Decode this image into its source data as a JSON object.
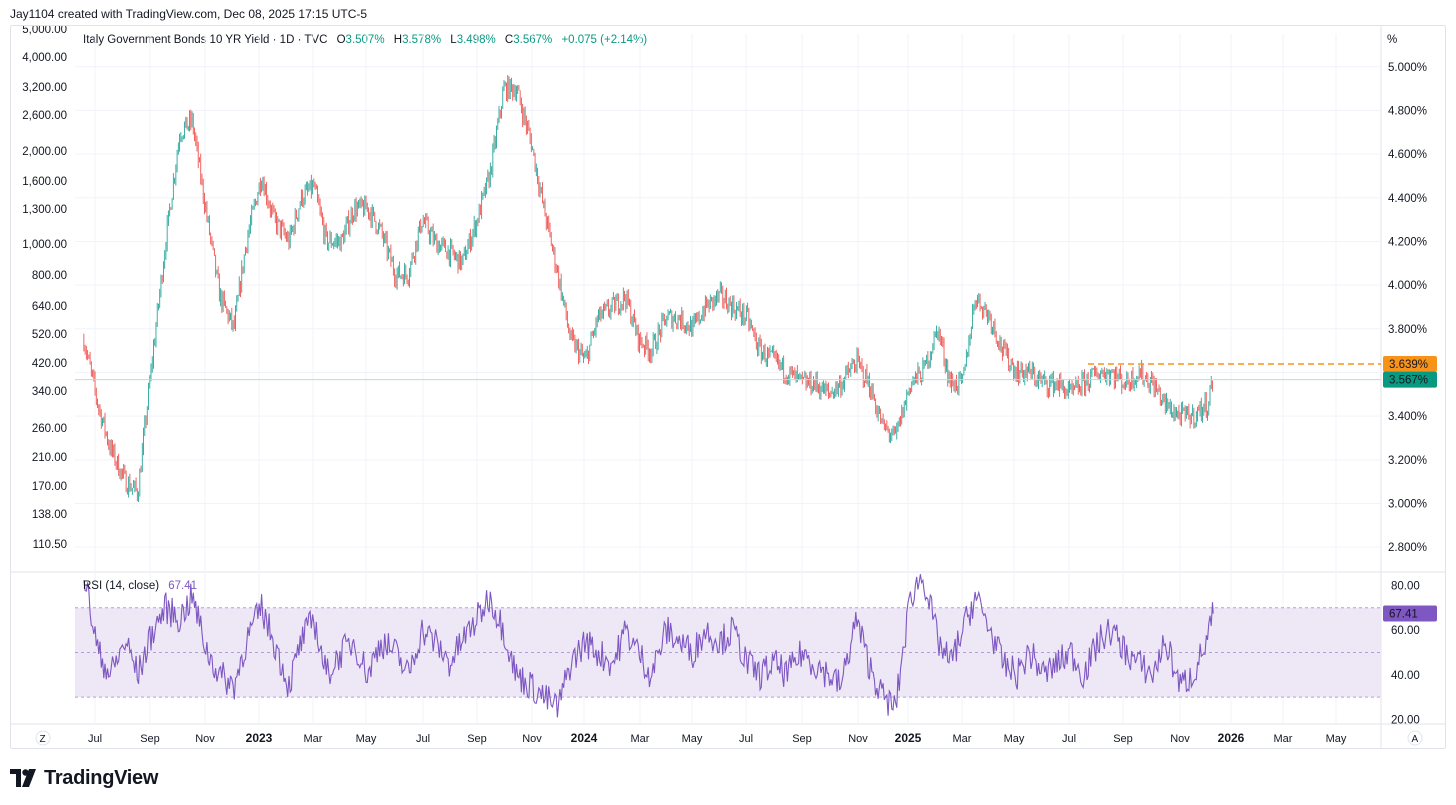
{
  "header": {
    "attribution": "Jay1104 created with TradingView.com, Dec 08, 2025 17:15 UTC-5"
  },
  "legend": {
    "symbol": "Italy Government Bonds 10 YR Yield · 1D · TVC",
    "o_label": "O",
    "o_value": "3.507%",
    "h_label": "H",
    "h_value": "3.578%",
    "l_label": "L",
    "l_value": "3.498%",
    "c_label": "C",
    "c_value": "3.567%",
    "change": "+0.075 (+2.14%)"
  },
  "rsi_legend": {
    "label": "RSI (14, close)",
    "value": "67.41"
  },
  "scale_buttons": {
    "percent": "%",
    "auto": "A",
    "zoom": "Z"
  },
  "price_tags": {
    "level": "3.639%",
    "last": "3.567%",
    "rsi": "67.41"
  },
  "colors": {
    "up": "#26a69a",
    "down": "#ef5350",
    "rsi_line": "#7e57c2",
    "rsi_band": "#ede7f6",
    "level_line": "#f7931a",
    "last_tag": "#089981",
    "text": "#131722",
    "grid": "#f0f3fa"
  },
  "brand": {
    "name": "TradingView",
    "logo_icon": "tradingview-logo-icon"
  },
  "chart_data": [
    {
      "type": "line",
      "subtype": "candlestick",
      "title": "Italy Government Bonds 10 YR Yield · 1D · TVC",
      "ohlc_last": {
        "open": 3.507,
        "high": 3.578,
        "low": 3.498,
        "close": 3.567,
        "change": 0.075,
        "change_pct": 2.14
      },
      "x": [
        "2022-06-15",
        "2022-07-01",
        "2022-07-15",
        "2022-08-01",
        "2022-08-15",
        "2022-09-01",
        "2022-09-15",
        "2022-10-01",
        "2022-10-15",
        "2022-11-01",
        "2022-11-15",
        "2022-12-01",
        "2022-12-15",
        "2023-01-01",
        "2023-01-15",
        "2023-02-01",
        "2023-02-15",
        "2023-03-01",
        "2023-03-15",
        "2023-04-01",
        "2023-04-15",
        "2023-05-01",
        "2023-05-15",
        "2023-06-01",
        "2023-06-15",
        "2023-07-01",
        "2023-07-15",
        "2023-08-01",
        "2023-08-15",
        "2023-09-01",
        "2023-09-15",
        "2023-10-01",
        "2023-10-15",
        "2023-11-01",
        "2023-11-15",
        "2023-12-01",
        "2023-12-15",
        "2024-01-01",
        "2024-01-15",
        "2024-02-01",
        "2024-02-15",
        "2024-03-01",
        "2024-03-15",
        "2024-04-01",
        "2024-04-15",
        "2024-05-01",
        "2024-05-15",
        "2024-06-01",
        "2024-06-15",
        "2024-07-01",
        "2024-07-15",
        "2024-08-01",
        "2024-08-15",
        "2024-09-01",
        "2024-09-15",
        "2024-10-01",
        "2024-10-15",
        "2024-11-01",
        "2024-11-15",
        "2024-12-01",
        "2024-12-15",
        "2025-01-01",
        "2025-01-15",
        "2025-02-01",
        "2025-02-15",
        "2025-03-01",
        "2025-03-15",
        "2025-04-01",
        "2025-04-15",
        "2025-05-01",
        "2025-05-15",
        "2025-06-01",
        "2025-06-15",
        "2025-07-01",
        "2025-07-15",
        "2025-08-01",
        "2025-08-15",
        "2025-09-01",
        "2025-09-15",
        "2025-10-01",
        "2025-10-15",
        "2025-11-01",
        "2025-11-15",
        "2025-12-01",
        "2025-12-08"
      ],
      "series": [
        {
          "values": [
            3.75,
            3.45,
            3.25,
            3.1,
            3.05,
            3.7,
            4.2,
            4.7,
            4.75,
            4.3,
            3.95,
            3.8,
            4.2,
            4.5,
            4.3,
            4.2,
            4.4,
            4.45,
            4.2,
            4.2,
            4.35,
            4.35,
            4.25,
            4.05,
            4.05,
            4.3,
            4.2,
            4.15,
            4.1,
            4.3,
            4.5,
            4.9,
            4.9,
            4.65,
            4.35,
            4.05,
            3.75,
            3.65,
            3.85,
            3.9,
            3.95,
            3.75,
            3.7,
            3.85,
            3.85,
            3.8,
            3.9,
            3.95,
            3.9,
            3.85,
            3.7,
            3.65,
            3.6,
            3.55,
            3.55,
            3.5,
            3.55,
            3.65,
            3.55,
            3.35,
            3.3,
            3.55,
            3.6,
            3.8,
            3.55,
            3.55,
            3.95,
            3.85,
            3.7,
            3.6,
            3.6,
            3.55,
            3.55,
            3.5,
            3.55,
            3.6,
            3.6,
            3.55,
            3.6,
            3.55,
            3.45,
            3.4,
            3.4,
            3.45,
            3.567
          ]
        }
      ],
      "yaxis_right": [
        "5.000%",
        "4.800%",
        "4.600%",
        "4.400%",
        "4.200%",
        "4.000%",
        "3.800%",
        "3.600%",
        "3.400%",
        "3.200%",
        "3.000%",
        "2.800%"
      ],
      "yaxis_left": [
        "5,000.00",
        "4,000.00",
        "3,200.00",
        "2,600.00",
        "2,000.00",
        "1,600.00",
        "1,300.00",
        "1,000.00",
        "800.00",
        "640.00",
        "520.00",
        "420.00",
        "340.00",
        "260.00",
        "210.00",
        "170.00",
        "138.00",
        "110.50"
      ],
      "ylim": [
        2.7,
        5.15
      ],
      "horizontal_level": 3.639,
      "grid": true
    },
    {
      "type": "line",
      "title": "RSI (14, close)",
      "last_value": 67.41,
      "x": [
        "2022-06-15",
        "2022-07-01",
        "2022-07-15",
        "2022-08-01",
        "2022-08-15",
        "2022-09-01",
        "2022-09-15",
        "2022-10-01",
        "2022-10-15",
        "2022-11-01",
        "2022-11-15",
        "2022-12-01",
        "2022-12-15",
        "2023-01-01",
        "2023-01-15",
        "2023-02-01",
        "2023-02-15",
        "2023-03-01",
        "2023-03-15",
        "2023-04-01",
        "2023-04-15",
        "2023-05-01",
        "2023-05-15",
        "2023-06-01",
        "2023-06-15",
        "2023-07-01",
        "2023-07-15",
        "2023-08-01",
        "2023-08-15",
        "2023-09-01",
        "2023-09-15",
        "2023-10-01",
        "2023-10-15",
        "2023-11-01",
        "2023-11-15",
        "2023-12-01",
        "2023-12-15",
        "2024-01-01",
        "2024-01-15",
        "2024-02-01",
        "2024-02-15",
        "2024-03-01",
        "2024-03-15",
        "2024-04-01",
        "2024-04-15",
        "2024-05-01",
        "2024-05-15",
        "2024-06-01",
        "2024-06-15",
        "2024-07-01",
        "2024-07-15",
        "2024-08-01",
        "2024-08-15",
        "2024-09-01",
        "2024-09-15",
        "2024-10-01",
        "2024-10-15",
        "2024-11-01",
        "2024-11-15",
        "2024-12-01",
        "2024-12-15",
        "2025-01-01",
        "2025-01-15",
        "2025-02-01",
        "2025-02-15",
        "2025-03-01",
        "2025-03-15",
        "2025-04-01",
        "2025-04-15",
        "2025-05-01",
        "2025-05-15",
        "2025-06-01",
        "2025-06-15",
        "2025-07-01",
        "2025-07-15",
        "2025-08-01",
        "2025-08-15",
        "2025-09-01",
        "2025-09-15",
        "2025-10-01",
        "2025-10-15",
        "2025-11-01",
        "2025-11-15",
        "2025-12-01",
        "2025-12-08"
      ],
      "series": [
        {
          "values": [
            85,
            50,
            40,
            55,
            40,
            60,
            70,
            65,
            75,
            50,
            40,
            35,
            55,
            70,
            55,
            35,
            55,
            65,
            40,
            50,
            55,
            40,
            55,
            50,
            40,
            60,
            55,
            45,
            55,
            65,
            75,
            60,
            40,
            35,
            30,
            25,
            45,
            55,
            50,
            45,
            60,
            50,
            40,
            60,
            55,
            50,
            60,
            55,
            60,
            45,
            40,
            45,
            40,
            50,
            45,
            40,
            35,
            65,
            45,
            30,
            25,
            75,
            85,
            55,
            45,
            60,
            75,
            60,
            45,
            40,
            50,
            40,
            45,
            50,
            40,
            55,
            60,
            50,
            45,
            40,
            55,
            35,
            40,
            55,
            67.41
          ]
        }
      ],
      "yaxis": [
        "80.00",
        "60.00",
        "40.00",
        "20.00"
      ],
      "ylim": [
        18,
        86
      ],
      "band": [
        30,
        70
      ],
      "midline": 50
    }
  ],
  "x_axis_labels": [
    {
      "text": "Jul",
      "bold": false
    },
    {
      "text": "Sep",
      "bold": false
    },
    {
      "text": "Nov",
      "bold": false
    },
    {
      "text": "2023",
      "bold": true
    },
    {
      "text": "Mar",
      "bold": false
    },
    {
      "text": "May",
      "bold": false
    },
    {
      "text": "Jul",
      "bold": false
    },
    {
      "text": "Sep",
      "bold": false
    },
    {
      "text": "Nov",
      "bold": false
    },
    {
      "text": "2024",
      "bold": true
    },
    {
      "text": "Mar",
      "bold": false
    },
    {
      "text": "May",
      "bold": false
    },
    {
      "text": "Jul",
      "bold": false
    },
    {
      "text": "Sep",
      "bold": false
    },
    {
      "text": "Nov",
      "bold": false
    },
    {
      "text": "2025",
      "bold": true
    },
    {
      "text": "Mar",
      "bold": false
    },
    {
      "text": "May",
      "bold": false
    },
    {
      "text": "Jul",
      "bold": false
    },
    {
      "text": "Sep",
      "bold": false
    },
    {
      "text": "Nov",
      "bold": false
    },
    {
      "text": "2026",
      "bold": true
    },
    {
      "text": "Mar",
      "bold": false
    },
    {
      "text": "May",
      "bold": false
    }
  ]
}
